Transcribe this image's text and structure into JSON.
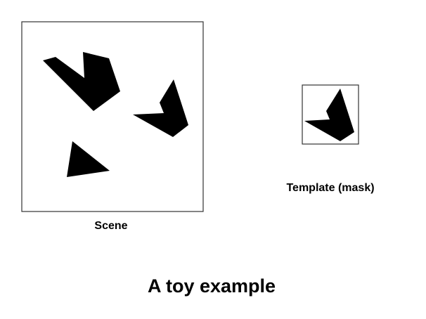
{
  "labels": {
    "scene": "Scene",
    "template": "Template (mask)",
    "title": "A toy example"
  },
  "colors": {
    "shape_fill": "#000000",
    "frame_stroke": "#333333",
    "background": "#ffffff"
  }
}
